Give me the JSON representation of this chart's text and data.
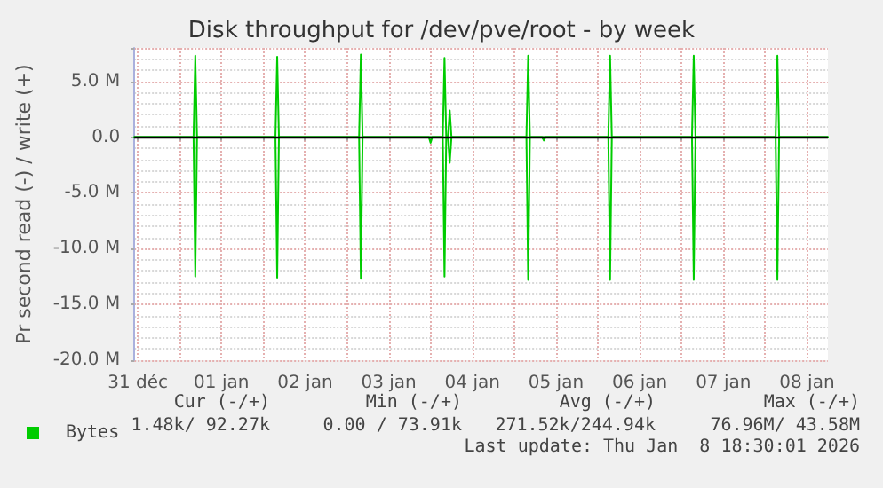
{
  "chart_data": {
    "type": "line",
    "title": "Disk throughput for /dev/pve/root - by week",
    "ylabel": "Pr second read (-) / write (+)",
    "x": [
      "2025-12-31T11:00",
      "2026-01-01T04:00",
      "2026-01-01T04:30",
      "2026-01-01T05:00",
      "2026-01-02T03:30",
      "2026-01-02T04:00",
      "2026-01-02T04:30",
      "2026-01-03T03:30",
      "2026-01-03T04:00",
      "2026-01-03T04:30",
      "2026-01-03T23:30",
      "2026-01-04T00:00",
      "2026-01-04T00:30",
      "2026-01-04T03:30",
      "2026-01-04T04:00",
      "2026-01-04T04:30",
      "2026-01-04T05:00",
      "2026-01-04T05:30",
      "2026-01-04T06:00",
      "2026-01-05T03:30",
      "2026-01-05T04:00",
      "2026-01-05T04:30",
      "2026-01-05T08:00",
      "2026-01-05T08:30",
      "2026-01-05T09:00",
      "2026-01-06T03:00",
      "2026-01-06T03:30",
      "2026-01-06T04:00",
      "2026-01-07T03:00",
      "2026-01-07T03:30",
      "2026-01-07T04:00",
      "2026-01-08T03:00",
      "2026-01-08T03:30",
      "2026-01-08T04:00",
      "2026-01-08T18:00"
    ],
    "series": [
      {
        "name": "Bytes",
        "color": "#00cc00",
        "values": [
          0,
          0,
          7300000,
          0,
          0,
          7200000,
          0,
          0,
          7400000,
          0,
          0,
          0,
          0,
          0,
          7100000,
          0,
          0,
          2400000,
          0,
          0,
          7300000,
          0,
          0,
          0,
          0,
          0,
          7300000,
          0,
          0,
          7300000,
          0,
          0,
          7300000,
          0,
          0
        ]
      },
      {
        "color": "#00cc00",
        "values": [
          0,
          0,
          -12500000,
          0,
          0,
          -12600000,
          0,
          0,
          -12700000,
          0,
          0,
          -500000,
          0,
          0,
          -12500000,
          0,
          0,
          -2300000,
          0,
          0,
          -12800000,
          0,
          0,
          -300000,
          0,
          0,
          -12800000,
          0,
          0,
          -12800000,
          0,
          0,
          -12800000,
          0,
          0
        ]
      }
    ],
    "xlim": [
      "2025-12-31T11:00",
      "2026-01-08T18:00"
    ],
    "xticks": [
      {
        "value": "2025-12-31T12:00",
        "label": "31 déc"
      },
      {
        "value": "2026-01-01T00:00",
        "label": null
      },
      {
        "value": "2026-01-01T12:00",
        "label": "01 jan"
      },
      {
        "value": "2026-01-02T00:00",
        "label": null
      },
      {
        "value": "2026-01-02T12:00",
        "label": "02 jan"
      },
      {
        "value": "2026-01-03T00:00",
        "label": null
      },
      {
        "value": "2026-01-03T12:00",
        "label": "03 jan"
      },
      {
        "value": "2026-01-04T00:00",
        "label": null
      },
      {
        "value": "2026-01-04T12:00",
        "label": "04 jan"
      },
      {
        "value": "2026-01-05T00:00",
        "label": null
      },
      {
        "value": "2026-01-05T12:00",
        "label": "05 jan"
      },
      {
        "value": "2026-01-06T00:00",
        "label": null
      },
      {
        "value": "2026-01-06T12:00",
        "label": "06 jan"
      },
      {
        "value": "2026-01-07T00:00",
        "label": null
      },
      {
        "value": "2026-01-07T12:00",
        "label": "07 jan"
      },
      {
        "value": "2026-01-08T00:00",
        "label": null
      },
      {
        "value": "2026-01-08T12:00",
        "label": "08 jan"
      }
    ],
    "ylim": [
      -20000000,
      8000000
    ],
    "yticks": [
      {
        "value": -20000000,
        "label": "-20.0 M"
      },
      {
        "value": -15000000,
        "label": "-15.0 M"
      },
      {
        "value": -10000000,
        "label": "-10.0 M"
      },
      {
        "value": -5000000,
        "label": "-5.0 M"
      },
      {
        "value": 0,
        "label": "0.0"
      },
      {
        "value": 5000000,
        "label": "5.0 M"
      }
    ],
    "ref_lines": [
      {
        "axis": "y",
        "value": 0,
        "color": "#000000"
      }
    ],
    "grid": true,
    "legend": "bottom left",
    "marker": "none",
    "line_style": "solid",
    "annotations": [
      "Cur (-/+)",
      "Min (-/+)",
      "Avg (-/+)",
      "Max (-/+)",
      "1.48k/ 92.27k",
      "0.00 / 73.91k",
      "271.52k/244.94k",
      "76.96M/ 43.58M",
      "Last update: Thu Jan  8 18:30:01 2026"
    ]
  }
}
